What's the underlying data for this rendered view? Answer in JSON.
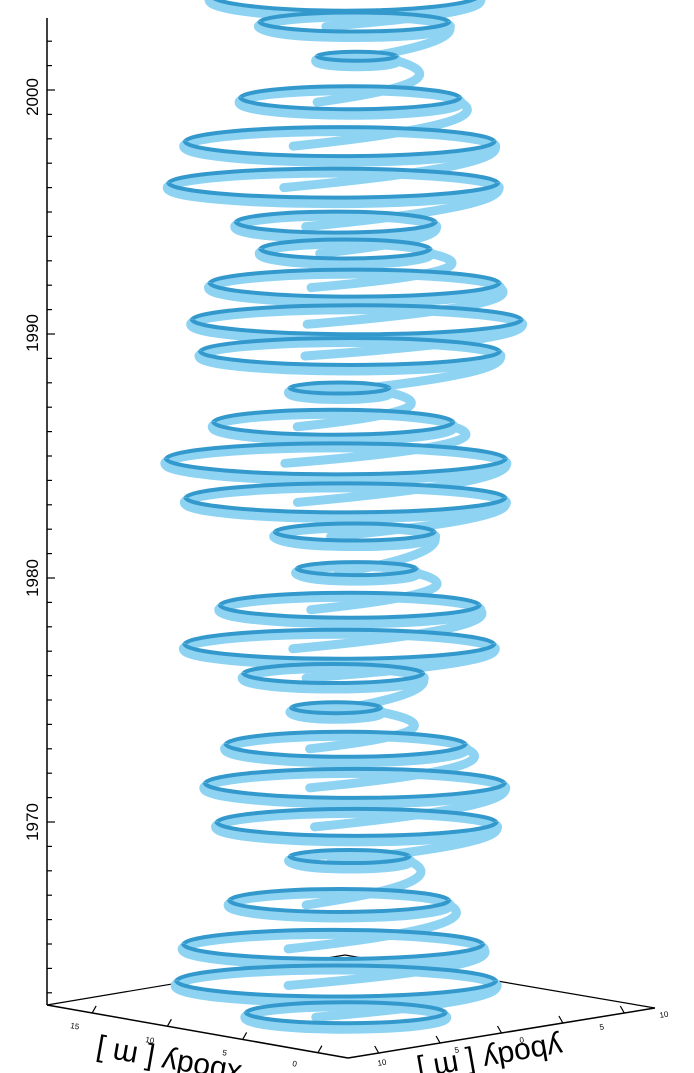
{
  "chart_data": {
    "type": "3d-line",
    "title": "",
    "z_axis": {
      "label": "",
      "ticks": [
        "1970",
        "1980",
        "1990",
        "2000"
      ],
      "range": [
        1962,
        2004
      ]
    },
    "x_axis": {
      "label": "xbody [ m ]",
      "ticks": [
        "15",
        "10",
        "5",
        "0"
      ]
    },
    "y_axis": {
      "label": "ybody [ m ]",
      "ticks": [
        "10",
        "5",
        "0",
        "5",
        "10"
      ]
    },
    "series_color_light": "#8fd3f3",
    "series_color_dark": "#3399cc",
    "background": "#ffffff",
    "loops": [
      {
        "year": 2003.7,
        "rx": 135,
        "ry": 16
      },
      {
        "year": 2002.6,
        "rx": 95,
        "ry": 10
      },
      {
        "year": 2001.2,
        "rx": 40,
        "ry": 5
      },
      {
        "year": 1999.5,
        "rx": 110,
        "ry": 12
      },
      {
        "year": 1997.7,
        "rx": 155,
        "ry": 15
      },
      {
        "year": 1996.0,
        "rx": 165,
        "ry": 15
      },
      {
        "year": 1994.4,
        "rx": 100,
        "ry": 11
      },
      {
        "year": 1993.3,
        "rx": 85,
        "ry": 10
      },
      {
        "year": 1991.9,
        "rx": 145,
        "ry": 14
      },
      {
        "year": 1990.4,
        "rx": 165,
        "ry": 15
      },
      {
        "year": 1989.1,
        "rx": 150,
        "ry": 14
      },
      {
        "year": 1987.6,
        "rx": 50,
        "ry": 6
      },
      {
        "year": 1986.2,
        "rx": 120,
        "ry": 13
      },
      {
        "year": 1984.7,
        "rx": 170,
        "ry": 16
      },
      {
        "year": 1983.1,
        "rx": 160,
        "ry": 15
      },
      {
        "year": 1981.7,
        "rx": 80,
        "ry": 9
      },
      {
        "year": 1980.2,
        "rx": 60,
        "ry": 7
      },
      {
        "year": 1978.7,
        "rx": 130,
        "ry": 13
      },
      {
        "year": 1977.1,
        "rx": 155,
        "ry": 15
      },
      {
        "year": 1975.9,
        "rx": 90,
        "ry": 10
      },
      {
        "year": 1974.5,
        "rx": 45,
        "ry": 6
      },
      {
        "year": 1973.0,
        "rx": 120,
        "ry": 13
      },
      {
        "year": 1971.4,
        "rx": 150,
        "ry": 15
      },
      {
        "year": 1969.8,
        "rx": 140,
        "ry": 14
      },
      {
        "year": 1968.4,
        "rx": 60,
        "ry": 7
      },
      {
        "year": 1966.6,
        "rx": 110,
        "ry": 12
      },
      {
        "year": 1964.8,
        "rx": 150,
        "ry": 15
      },
      {
        "year": 1963.3,
        "rx": 160,
        "ry": 16
      },
      {
        "year": 1962.0,
        "rx": 100,
        "ry": 11
      }
    ]
  }
}
